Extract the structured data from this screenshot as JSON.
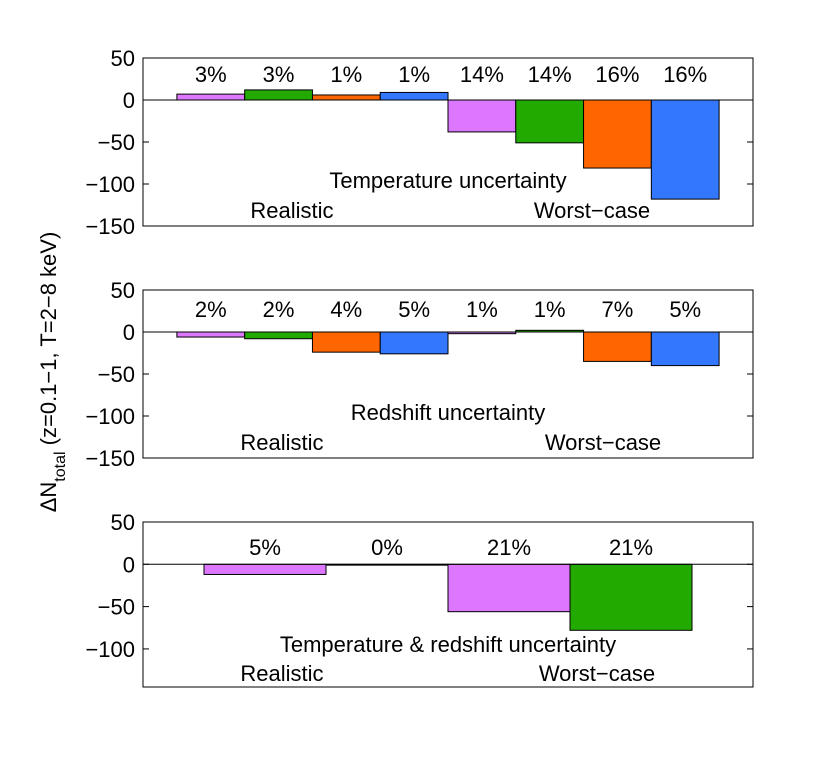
{
  "colors": {
    "purple": "#dd77ff",
    "green": "#22aa00",
    "orange": "#ff6600",
    "blue": "#3377ff"
  },
  "ylabel": {
    "prefix": "ΔN",
    "sub": "total",
    "suffix": " (z=0.1−1, T=2−8 keV)"
  },
  "chart_data": [
    {
      "type": "bar",
      "title": "",
      "ylim": [
        -150,
        50
      ],
      "yticks": [
        50,
        0,
        -50,
        -100,
        -150
      ],
      "ytick_labels": [
        "50",
        "0",
        "−50",
        "−100",
        "−150"
      ],
      "annotation": "Temperature uncertainty",
      "group_labels": [
        "Realistic",
        "Worst−case"
      ],
      "bars": [
        {
          "value": 7,
          "color": "purple",
          "label": "3%"
        },
        {
          "value": 12,
          "color": "green",
          "label": "3%"
        },
        {
          "value": 6,
          "color": "orange",
          "label": "1%"
        },
        {
          "value": 9,
          "color": "blue",
          "label": "1%"
        },
        {
          "value": -38,
          "color": "purple",
          "label": "14%"
        },
        {
          "value": -51,
          "color": "green",
          "label": "14%"
        },
        {
          "value": -81,
          "color": "orange",
          "label": "16%"
        },
        {
          "value": -118,
          "color": "blue",
          "label": "16%"
        }
      ]
    },
    {
      "type": "bar",
      "title": "",
      "ylim": [
        -150,
        50
      ],
      "yticks": [
        50,
        0,
        -50,
        -100,
        -150
      ],
      "ytick_labels": [
        "50",
        "0",
        "−50",
        "−100",
        "−150"
      ],
      "annotation": "Redshift uncertainty",
      "group_labels": [
        "Realistic",
        "Worst−case"
      ],
      "bars": [
        {
          "value": -6,
          "color": "purple",
          "label": "2%"
        },
        {
          "value": -8,
          "color": "green",
          "label": "2%"
        },
        {
          "value": -24,
          "color": "orange",
          "label": "4%"
        },
        {
          "value": -26,
          "color": "blue",
          "label": "5%"
        },
        {
          "value": -2,
          "color": "purple",
          "label": "1%"
        },
        {
          "value": 2,
          "color": "green",
          "label": "1%"
        },
        {
          "value": -35,
          "color": "orange",
          "label": "7%"
        },
        {
          "value": -40,
          "color": "blue",
          "label": "5%"
        }
      ]
    },
    {
      "type": "bar",
      "title": "",
      "ylim": [
        -145,
        50
      ],
      "yticks": [
        50,
        0,
        -50,
        -100
      ],
      "ytick_labels": [
        "50",
        "0",
        "−50",
        "−100"
      ],
      "annotation": "Temperature & redshift uncertainty",
      "group_labels": [
        "Realistic",
        "Worst−case"
      ],
      "bars": [
        {
          "value": -12,
          "color": "purple",
          "label": "5%"
        },
        {
          "value": -1,
          "color": "green",
          "label": "0%"
        },
        {
          "value": -56,
          "color": "purple",
          "label": "21%"
        },
        {
          "value": -78,
          "color": "green",
          "label": "21%"
        }
      ]
    }
  ]
}
